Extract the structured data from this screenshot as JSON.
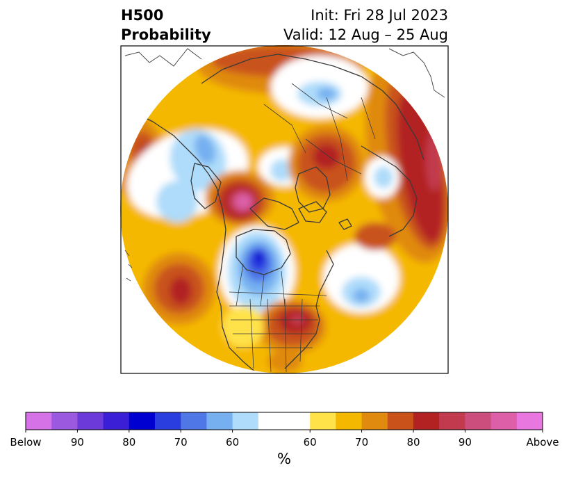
{
  "title": {
    "left_line1": "H500",
    "left_line2": "Probability",
    "right_line1": "Init: Fri 28 Jul 2023",
    "right_line2": "Valid: 12 Aug – 25 Aug"
  },
  "colorbar": {
    "unit": "%",
    "ticks": [
      "Below",
      "90",
      "80",
      "70",
      "60",
      "60",
      "70",
      "80",
      "90",
      "Above"
    ],
    "colors": [
      "#d572e8",
      "#9b59e0",
      "#6b3ad8",
      "#3a1fd6",
      "#0000d0",
      "#2a3ee0",
      "#4f78e6",
      "#76b0f0",
      "#aedcfa",
      "#ffffff",
      "#ffe24a",
      "#f5b800",
      "#e08a10",
      "#c9521a",
      "#b22222",
      "#c23a4e",
      "#cc4e7c",
      "#dc5fa8",
      "#e878e0"
    ]
  },
  "map": {
    "projection": "north polar stereographic",
    "palette": {
      "white": "#ffffff",
      "yellow": "#ffe24a",
      "gold": "#f5b800",
      "orange": "#e08a10",
      "dark_orange": "#c9521a",
      "red": "#b22222",
      "rose": "#c23a4e",
      "pink": "#dc5fa8",
      "light_blue": "#aedcfa",
      "blue": "#76b0f0",
      "mid_blue": "#4f78e6",
      "deep_blue": "#2a3ee0",
      "darkest_blue": "#0000d0"
    }
  }
}
